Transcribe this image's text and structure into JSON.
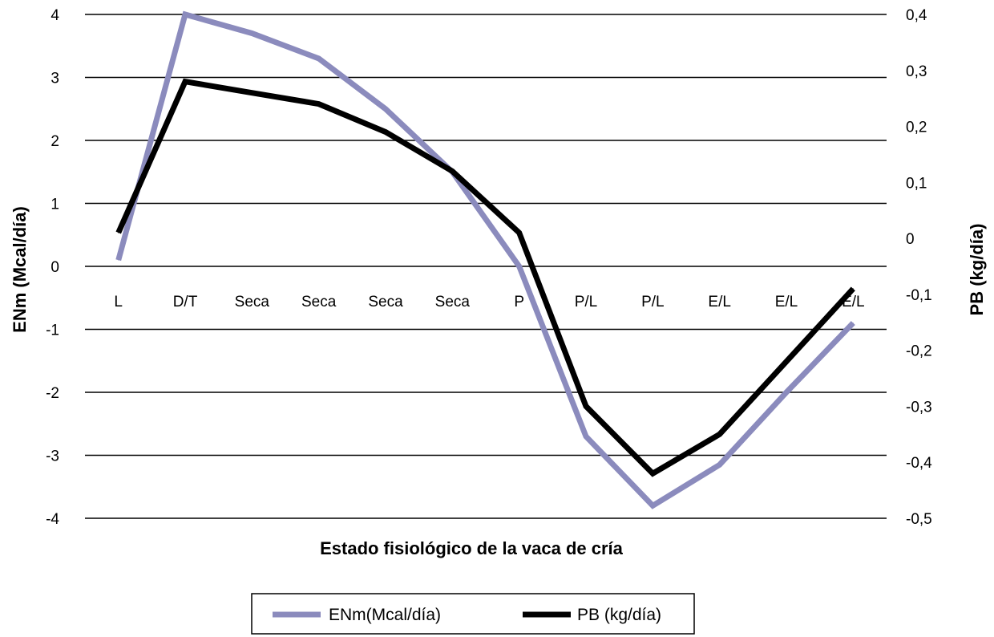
{
  "chart_data": {
    "type": "line",
    "xlabel": "Estado fisiológico de la vaca de cría",
    "ylabel": "ENm (Mcal/día)",
    "y2label": "PB (kg/día)",
    "categories": [
      "L",
      "D/T",
      "Seca",
      "Seca",
      "Seca",
      "Seca",
      "P",
      "P/L",
      "P/L",
      "E/L",
      "E/L",
      "E/L"
    ],
    "ylim": [
      -4,
      4
    ],
    "y2lim": [
      -0.5,
      0.4
    ],
    "yticks": [
      "-4",
      "-3",
      "-2",
      "-1",
      "0",
      "1",
      "2",
      "3",
      "4"
    ],
    "y2ticks": [
      "-0,5",
      "-0,4",
      "-0,3",
      "-0,2",
      "-0,1",
      "0",
      "0,1",
      "0,2",
      "0,3",
      "0,4"
    ],
    "grid": true,
    "legend_position": "bottom",
    "series": [
      {
        "name": "ENm(Mcal/día)",
        "axis": "left",
        "color": "#8b8bbd",
        "values": [
          0.1,
          4.0,
          3.7,
          3.3,
          2.5,
          1.5,
          0.0,
          -2.7,
          -3.8,
          -3.15,
          -2.0,
          -0.9
        ]
      },
      {
        "name": "PB (kg/día)",
        "axis": "right",
        "color": "#000000",
        "values": [
          0.01,
          0.28,
          0.26,
          0.24,
          0.19,
          0.12,
          0.01,
          -0.3,
          -0.42,
          -0.35,
          -0.22,
          -0.09
        ]
      }
    ]
  }
}
